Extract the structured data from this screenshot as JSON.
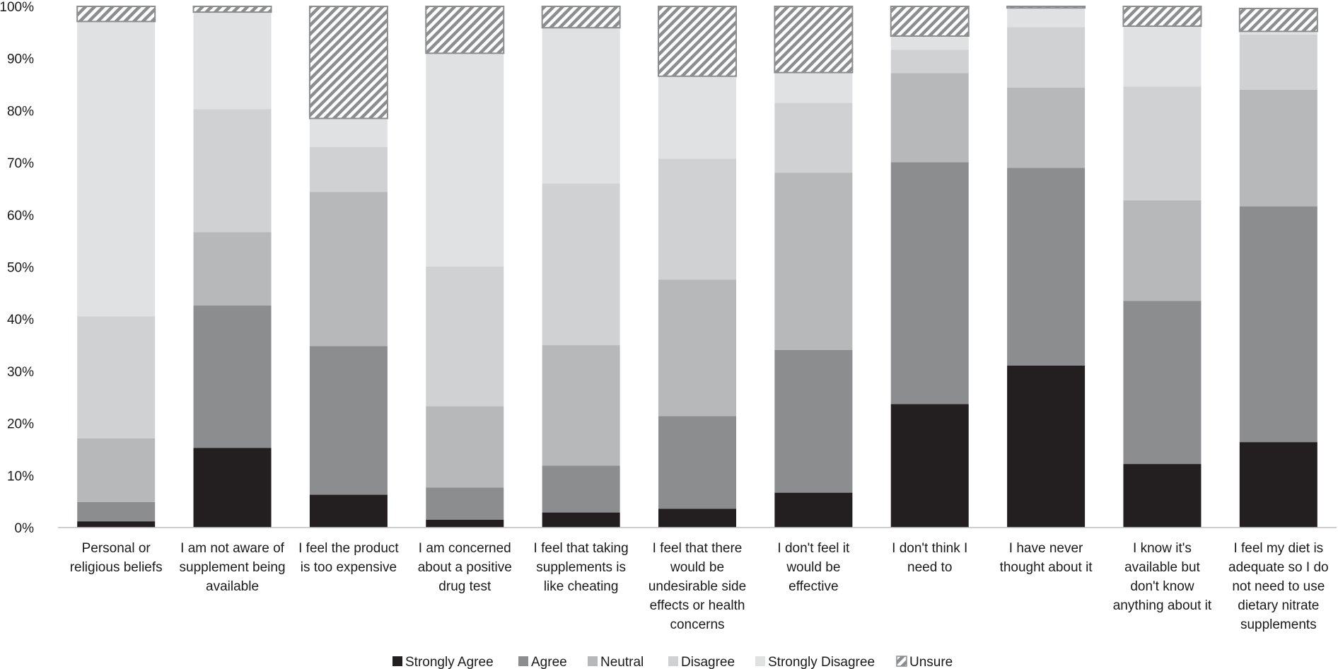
{
  "chart_data": {
    "type": "bar",
    "stacked": true,
    "title": "",
    "xlabel": "",
    "ylabel": "",
    "ylim": [
      0,
      100
    ],
    "yticks": [
      "0%",
      "10%",
      "20%",
      "30%",
      "40%",
      "50%",
      "60%",
      "70%",
      "80%",
      "90%",
      "100%"
    ],
    "categories": [
      [
        "Personal or",
        "religious beliefs"
      ],
      [
        "I am not aware of",
        "supplement being",
        "available"
      ],
      [
        "I feel the product",
        "is too expensive"
      ],
      [
        "I am concerned",
        "about a positive",
        "drug test"
      ],
      [
        "I feel that taking",
        "supplements is",
        "like cheating"
      ],
      [
        "I feel that there",
        "would be",
        "undesirable side",
        "effects or health",
        "concerns"
      ],
      [
        "I don't feel it",
        "would be",
        "effective"
      ],
      [
        "I don't think I",
        "need to"
      ],
      [
        "I have never",
        "thought about it"
      ],
      [
        "I know it's",
        "available but",
        "don't know",
        "anything about it"
      ],
      [
        "I feel my diet is",
        "adequate so I do",
        "not need to use",
        "dietary nitrate",
        "supplements"
      ]
    ],
    "series": [
      {
        "name": "Strongly Agree",
        "color": "#231f20",
        "values": [
          1.2,
          15.3,
          6.3,
          1.5,
          2.9,
          3.6,
          6.7,
          23.7,
          31.1,
          12.2,
          16.4
        ]
      },
      {
        "name": "Agree",
        "color": "#8c8d8f",
        "values": [
          3.7,
          27.3,
          28.5,
          6.2,
          9.0,
          17.8,
          27.4,
          46.4,
          37.9,
          31.3,
          45.2
        ]
      },
      {
        "name": "Neutral",
        "color": "#b7b8ba",
        "values": [
          12.2,
          14.1,
          29.6,
          15.6,
          23.1,
          26.2,
          34.0,
          17.1,
          15.4,
          19.3,
          22.4
        ]
      },
      {
        "name": "Disagree",
        "color": "#d0d1d3",
        "values": [
          23.4,
          23.6,
          8.6,
          26.8,
          31.0,
          23.2,
          13.4,
          4.5,
          11.6,
          21.8,
          10.6
        ]
      },
      {
        "name": "Strongly Disagree",
        "color": "#e0e1e3",
        "values": [
          56.6,
          18.6,
          5.5,
          40.9,
          29.9,
          15.8,
          5.8,
          2.6,
          3.7,
          11.6,
          0.6
        ]
      },
      {
        "name": "Unsure",
        "color": "hatch",
        "values": [
          2.9,
          1.1,
          21.5,
          9.0,
          4.1,
          13.4,
          12.7,
          5.7,
          0.3,
          3.8,
          4.4
        ]
      }
    ],
    "legend": [
      "Strongly Agree",
      "Agree",
      "Neutral",
      "Disagree",
      "Strongly Disagree",
      "Unsure"
    ],
    "legend_position": "bottom-center",
    "grid": false
  }
}
